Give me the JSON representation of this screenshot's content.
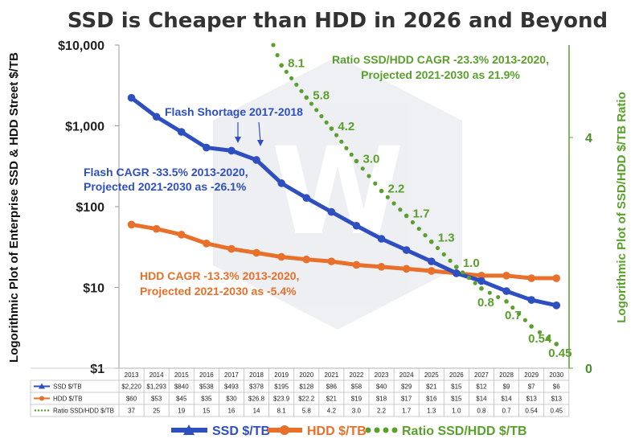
{
  "chart_data": {
    "type": "line",
    "title": "SSD is Cheaper than HDD in 2026 and Beyond",
    "ylabel": "Logorithmic Plot of Enterprise SSD & HDD Street $/TB",
    "y2label": "Logorithmic Plot of SSD/HDD $/TB Ratio",
    "y_scale": "log",
    "ylim": [
      1,
      10000
    ],
    "y_ticks": [
      1,
      10,
      100,
      1000,
      10000
    ],
    "y_tick_labels": [
      "$1",
      "$10",
      "$100",
      "$1,000",
      "$10,000"
    ],
    "y2_scale": "log",
    "y2_ticks": [
      0,
      4
    ],
    "y2_tick_labels": [
      "0",
      "4"
    ],
    "categories": [
      "2013",
      "2014",
      "2015",
      "2016",
      "2017",
      "2018",
      "2019",
      "2020",
      "2021",
      "2022",
      "2023",
      "2024",
      "2025",
      "2026",
      "2027",
      "2028",
      "2029",
      "2030"
    ],
    "series": [
      {
        "name": "SSD $/TB",
        "color": "#2e4fbf",
        "axis": "left",
        "values": [
          2220,
          1293,
          840,
          538,
          493,
          378,
          195,
          128,
          86,
          58,
          40,
          29,
          21,
          15,
          12,
          9,
          7,
          6
        ],
        "table_values": [
          "$2,220",
          "$1,293",
          "$840",
          "$538",
          "$493",
          "$378",
          "$195",
          "$128",
          "$86",
          "$58",
          "$40",
          "$29",
          "$21",
          "$15",
          "$12",
          "$9",
          "$7",
          "$6"
        ]
      },
      {
        "name": "HDD $/TB",
        "color": "#e8702a",
        "axis": "left",
        "values": [
          60,
          53,
          45,
          35,
          30,
          26.8,
          23.9,
          22.2,
          21,
          19,
          18,
          17,
          16,
          15,
          14,
          14,
          13,
          13
        ],
        "table_values": [
          "$60",
          "$53",
          "$45",
          "$35",
          "$30",
          "$26.8",
          "$23.9",
          "$22.2",
          "$21",
          "$19",
          "$18",
          "$17",
          "$16",
          "$15",
          "$14",
          "$14",
          "$13",
          "$13"
        ]
      },
      {
        "name": "Ratio SSD/HDD $/TB",
        "color": "#5aa02c",
        "axis": "right",
        "values": [
          37,
          25,
          19,
          15,
          16,
          14,
          8.1,
          5.8,
          4.2,
          3.0,
          2.2,
          1.7,
          1.3,
          1.0,
          0.8,
          0.7,
          0.54,
          0.45
        ],
        "table_values": [
          "37",
          "25",
          "19",
          "15",
          "16",
          "14",
          "8.1",
          "5.8",
          "4.2",
          "3.0",
          "2.2",
          "1.7",
          "1.3",
          "1.0",
          "0.8",
          "0.7",
          "0.54",
          "0.45"
        ],
        "data_labels": [
          "8.1",
          "5.8",
          "4.2",
          "3.0",
          "2.2",
          "1.7",
          "1.3",
          "1.0",
          "0.8",
          "0.7",
          "0.54",
          "0.45"
        ]
      }
    ],
    "annotations": [
      {
        "text": "Flash Shortage 2017-2018",
        "color": "#2e4fbf"
      },
      {
        "text_lines": [
          "Flash CAGR -33.5% 2013-2020,",
          "Projected 2021-2030 as -26.1%"
        ],
        "color": "#2e4fbf"
      },
      {
        "text_lines": [
          "HDD CAGR -13.3% 2013-2020,",
          "Projected 2021-2030 as -5.4%"
        ],
        "color": "#e8702a"
      },
      {
        "text_lines": [
          "Ratio SSD/HDD CAGR -23.3% 2013-2020,",
          "Projected 2021-2030 as 21.9%"
        ],
        "color": "#5aa02c"
      }
    ],
    "legend_position": "bottom",
    "grid": false
  }
}
